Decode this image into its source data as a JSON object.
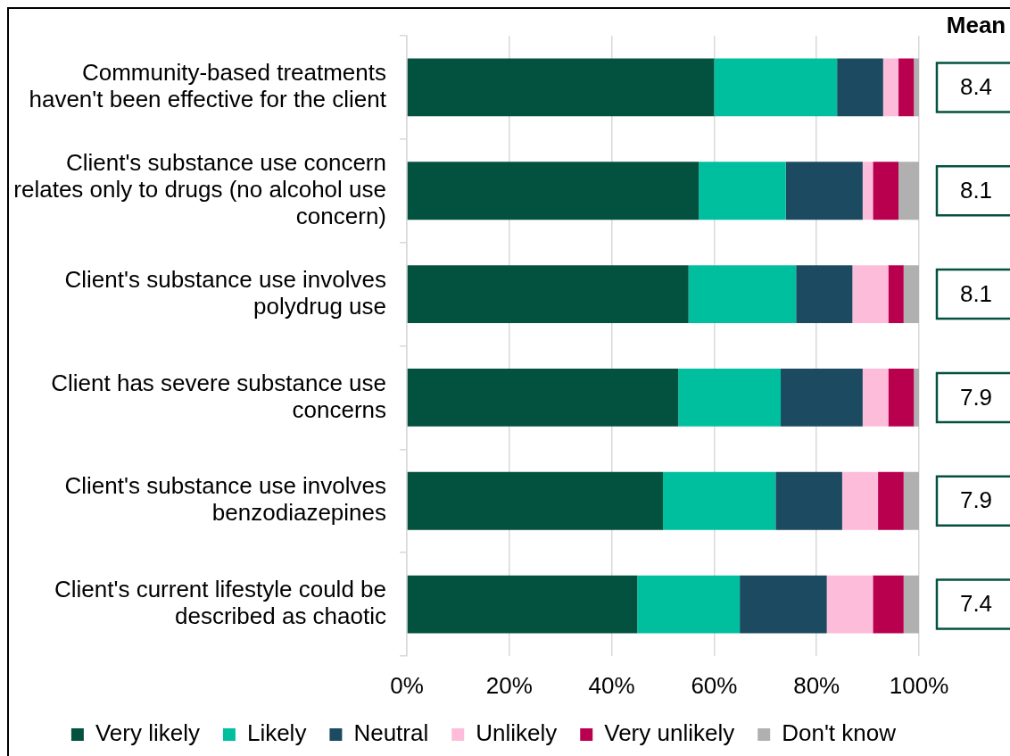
{
  "chart_data": {
    "type": "bar",
    "orientation": "horizontal",
    "stacked": true,
    "categories": [
      "Community-based treatments haven't been effective for the client",
      "Client's substance use concern relates only to drugs (no alcohol use concern)",
      "Client's substance use involves polydrug use",
      "Client has severe substance use concerns",
      "Client's substance use involves benzodiazepines",
      "Client's current lifestyle could be described as chaotic"
    ],
    "series": [
      {
        "name": "Very likely",
        "color": "#03513f",
        "values": [
          60,
          57,
          55,
          53,
          50,
          45
        ]
      },
      {
        "name": "Likely",
        "color": "#00bf9f",
        "values": [
          24,
          17,
          21,
          20,
          22,
          20
        ]
      },
      {
        "name": "Neutral",
        "color": "#1c4a60",
        "values": [
          9,
          15,
          11,
          16,
          13,
          17
        ]
      },
      {
        "name": "Unlikely",
        "color": "#fdbcd9",
        "values": [
          3,
          2,
          7,
          5,
          7,
          9
        ]
      },
      {
        "name": "Very unlikely",
        "color": "#b9004f",
        "values": [
          3,
          5,
          3,
          5,
          5,
          6
        ]
      },
      {
        "name": "Don't know",
        "color": "#b0b0b0",
        "values": [
          1,
          4,
          3,
          1,
          3,
          3
        ]
      }
    ],
    "xlim": [
      0,
      100
    ],
    "xticks": [
      {
        "value": 0,
        "label": "0%"
      },
      {
        "value": 20,
        "label": "20%"
      },
      {
        "value": 40,
        "label": "40%"
      },
      {
        "value": 60,
        "label": "60%"
      },
      {
        "value": 80,
        "label": "80%"
      },
      {
        "value": 100,
        "label": "100%"
      }
    ],
    "grid": "x",
    "legend": "bottom",
    "annotations": [
      "Mean",
      "8.4",
      "8.1",
      "8.1",
      "7.9",
      "7.9",
      "7.4"
    ]
  }
}
